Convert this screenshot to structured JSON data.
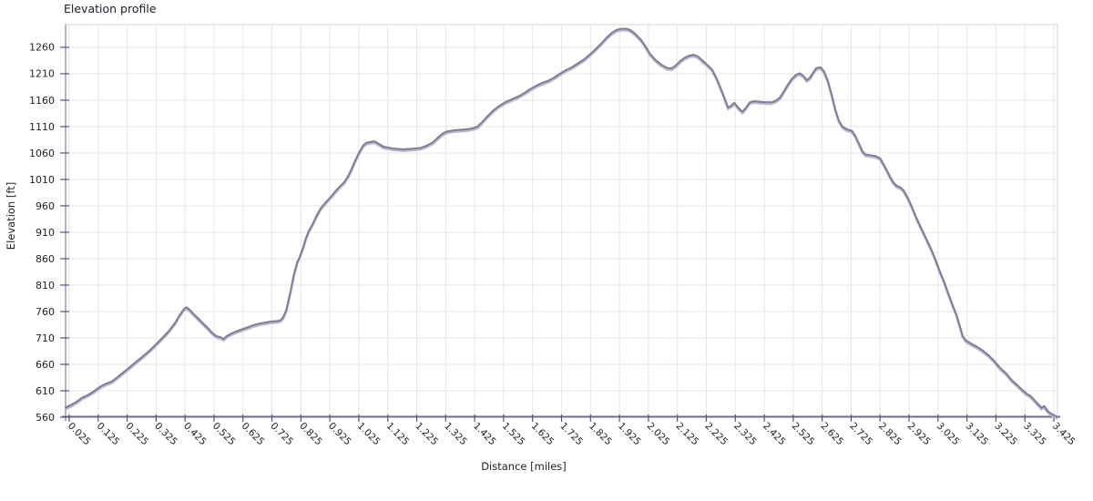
{
  "chart_data": {
    "type": "line",
    "title": "Elevation profile",
    "xlabel": "Distance [miles]",
    "ylabel": "Elevation [ft]",
    "x_tick_labels": [
      "0.025",
      "0.125",
      "0.225",
      "0.325",
      "0.425",
      "0.525",
      "0.625",
      "0.725",
      "0.825",
      "0.925",
      "1.025",
      "1.125",
      "1.225",
      "1.325",
      "1.425",
      "1.525",
      "1.625",
      "1.725",
      "1.825",
      "1.925",
      "2.025",
      "2.125",
      "2.225",
      "2.325",
      "2.425",
      "2.525",
      "2.625",
      "2.725",
      "2.825",
      "2.925",
      "3.025",
      "3.125",
      "3.225",
      "3.325",
      "3.425"
    ],
    "y_ticks": [
      560,
      610,
      660,
      710,
      760,
      810,
      860,
      910,
      960,
      1010,
      1060,
      1110,
      1160,
      1210,
      1260
    ],
    "xlim": [
      0.0125,
      3.4375
    ],
    "ylim": [
      560,
      1303
    ],
    "grid": true,
    "legend": "none",
    "colors": {
      "line": "#7f7c97",
      "line_highlight": "#bab7cb",
      "grid": "#e6e6e6",
      "axis_left": "#9d9bb1",
      "axis_bottom": "#6f6d7d",
      "tick": "#54527a",
      "border": "#d4d4d4",
      "text": "#222222",
      "title": "#1c1c28"
    },
    "series": [
      {
        "name": "elevation",
        "points": [
          [
            0.0125,
            578
          ],
          [
            0.03,
            583
          ],
          [
            0.05,
            589
          ],
          [
            0.07,
            597
          ],
          [
            0.09,
            602
          ],
          [
            0.11,
            609
          ],
          [
            0.13,
            617
          ],
          [
            0.15,
            623
          ],
          [
            0.17,
            627
          ],
          [
            0.19,
            635
          ],
          [
            0.21,
            644
          ],
          [
            0.23,
            653
          ],
          [
            0.25,
            662
          ],
          [
            0.27,
            671
          ],
          [
            0.29,
            680
          ],
          [
            0.31,
            690
          ],
          [
            0.33,
            701
          ],
          [
            0.35,
            712
          ],
          [
            0.37,
            724
          ],
          [
            0.39,
            738
          ],
          [
            0.405,
            752
          ],
          [
            0.42,
            764
          ],
          [
            0.43,
            768
          ],
          [
            0.44,
            764
          ],
          [
            0.455,
            755
          ],
          [
            0.47,
            747
          ],
          [
            0.49,
            736
          ],
          [
            0.505,
            728
          ],
          [
            0.52,
            719
          ],
          [
            0.535,
            713
          ],
          [
            0.55,
            711
          ],
          [
            0.558,
            708
          ],
          [
            0.568,
            713
          ],
          [
            0.58,
            717
          ],
          [
            0.6,
            722
          ],
          [
            0.62,
            726
          ],
          [
            0.64,
            730
          ],
          [
            0.66,
            734
          ],
          [
            0.68,
            737
          ],
          [
            0.7,
            739
          ],
          [
            0.72,
            741
          ],
          [
            0.745,
            742
          ],
          [
            0.755,
            744
          ],
          [
            0.763,
            748
          ],
          [
            0.775,
            763
          ],
          [
            0.79,
            800
          ],
          [
            0.8,
            828
          ],
          [
            0.812,
            853
          ],
          [
            0.82,
            862
          ],
          [
            0.832,
            880
          ],
          [
            0.842,
            898
          ],
          [
            0.852,
            912
          ],
          [
            0.865,
            925
          ],
          [
            0.878,
            940
          ],
          [
            0.89,
            952
          ],
          [
            0.9,
            960
          ],
          [
            0.915,
            969
          ],
          [
            0.93,
            978
          ],
          [
            0.945,
            988
          ],
          [
            0.96,
            997
          ],
          [
            0.975,
            1005
          ],
          [
            0.99,
            1018
          ],
          [
            1.0,
            1030
          ],
          [
            1.012,
            1045
          ],
          [
            1.025,
            1060
          ],
          [
            1.04,
            1074
          ],
          [
            1.05,
            1079
          ],
          [
            1.065,
            1081
          ],
          [
            1.08,
            1082
          ],
          [
            1.095,
            1077
          ],
          [
            1.11,
            1072
          ],
          [
            1.13,
            1070
          ],
          [
            1.15,
            1068
          ],
          [
            1.18,
            1067
          ],
          [
            1.21,
            1068
          ],
          [
            1.24,
            1070
          ],
          [
            1.26,
            1074
          ],
          [
            1.28,
            1080
          ],
          [
            1.3,
            1090
          ],
          [
            1.315,
            1097
          ],
          [
            1.33,
            1101
          ],
          [
            1.355,
            1103
          ],
          [
            1.38,
            1104
          ],
          [
            1.4,
            1105
          ],
          [
            1.42,
            1107
          ],
          [
            1.435,
            1110
          ],
          [
            1.45,
            1118
          ],
          [
            1.47,
            1130
          ],
          [
            1.49,
            1141
          ],
          [
            1.51,
            1149
          ],
          [
            1.53,
            1156
          ],
          [
            1.555,
            1162
          ],
          [
            1.58,
            1168
          ],
          [
            1.6,
            1175
          ],
          [
            1.62,
            1182
          ],
          [
            1.64,
            1188
          ],
          [
            1.66,
            1193
          ],
          [
            1.68,
            1197
          ],
          [
            1.7,
            1203
          ],
          [
            1.72,
            1210
          ],
          [
            1.74,
            1217
          ],
          [
            1.76,
            1222
          ],
          [
            1.78,
            1229
          ],
          [
            1.8,
            1236
          ],
          [
            1.82,
            1245
          ],
          [
            1.84,
            1255
          ],
          [
            1.86,
            1266
          ],
          [
            1.88,
            1278
          ],
          [
            1.9,
            1288
          ],
          [
            1.915,
            1293
          ],
          [
            1.93,
            1295
          ],
          [
            1.95,
            1295
          ],
          [
            1.965,
            1292
          ],
          [
            1.98,
            1285
          ],
          [
            2.0,
            1274
          ],
          [
            2.015,
            1262
          ],
          [
            2.03,
            1248
          ],
          [
            2.05,
            1236
          ],
          [
            2.07,
            1227
          ],
          [
            2.09,
            1221
          ],
          [
            2.105,
            1220
          ],
          [
            2.12,
            1226
          ],
          [
            2.135,
            1234
          ],
          [
            2.15,
            1240
          ],
          [
            2.165,
            1244
          ],
          [
            2.18,
            1246
          ],
          [
            2.195,
            1243
          ],
          [
            2.21,
            1236
          ],
          [
            2.23,
            1226
          ],
          [
            2.245,
            1218
          ],
          [
            2.26,
            1202
          ],
          [
            2.275,
            1182
          ],
          [
            2.29,
            1161
          ],
          [
            2.3,
            1146
          ],
          [
            2.312,
            1150
          ],
          [
            2.322,
            1155
          ],
          [
            2.335,
            1146
          ],
          [
            2.35,
            1138
          ],
          [
            2.362,
            1146
          ],
          [
            2.375,
            1156
          ],
          [
            2.39,
            1158
          ],
          [
            2.41,
            1157
          ],
          [
            2.43,
            1156
          ],
          [
            2.45,
            1156
          ],
          [
            2.465,
            1159
          ],
          [
            2.478,
            1164
          ],
          [
            2.49,
            1174
          ],
          [
            2.505,
            1188
          ],
          [
            2.52,
            1200
          ],
          [
            2.535,
            1208
          ],
          [
            2.548,
            1211
          ],
          [
            2.56,
            1206
          ],
          [
            2.572,
            1198
          ],
          [
            2.582,
            1202
          ],
          [
            2.595,
            1213
          ],
          [
            2.605,
            1221
          ],
          [
            2.62,
            1222
          ],
          [
            2.632,
            1214
          ],
          [
            2.645,
            1196
          ],
          [
            2.658,
            1170
          ],
          [
            2.67,
            1143
          ],
          [
            2.682,
            1122
          ],
          [
            2.695,
            1110
          ],
          [
            2.71,
            1105
          ],
          [
            2.728,
            1102
          ],
          [
            2.74,
            1092
          ],
          [
            2.752,
            1078
          ],
          [
            2.764,
            1063
          ],
          [
            2.775,
            1057
          ],
          [
            2.79,
            1056
          ],
          [
            2.81,
            1054
          ],
          [
            2.825,
            1050
          ],
          [
            2.84,
            1036
          ],
          [
            2.855,
            1020
          ],
          [
            2.87,
            1005
          ],
          [
            2.882,
            998
          ],
          [
            2.895,
            995
          ],
          [
            2.905,
            990
          ],
          [
            2.92,
            976
          ],
          [
            2.935,
            958
          ],
          [
            2.95,
            938
          ],
          [
            2.965,
            920
          ],
          [
            2.98,
            903
          ],
          [
            3.0,
            880
          ],
          [
            3.015,
            860
          ],
          [
            3.03,
            838
          ],
          [
            3.045,
            818
          ],
          [
            3.06,
            795
          ],
          [
            3.075,
            773
          ],
          [
            3.09,
            752
          ],
          [
            3.1,
            733
          ],
          [
            3.11,
            714
          ],
          [
            3.12,
            706
          ],
          [
            3.14,
            699
          ],
          [
            3.16,
            693
          ],
          [
            3.18,
            686
          ],
          [
            3.2,
            677
          ],
          [
            3.22,
            666
          ],
          [
            3.24,
            653
          ],
          [
            3.26,
            643
          ],
          [
            3.28,
            630
          ],
          [
            3.3,
            620
          ],
          [
            3.315,
            612
          ],
          [
            3.33,
            605
          ],
          [
            3.345,
            600
          ],
          [
            3.36,
            591
          ],
          [
            3.372,
            584
          ],
          [
            3.382,
            578
          ],
          [
            3.392,
            581
          ],
          [
            3.402,
            573
          ],
          [
            3.412,
            568
          ],
          [
            3.425,
            564
          ],
          [
            3.435,
            561
          ]
        ]
      }
    ]
  }
}
